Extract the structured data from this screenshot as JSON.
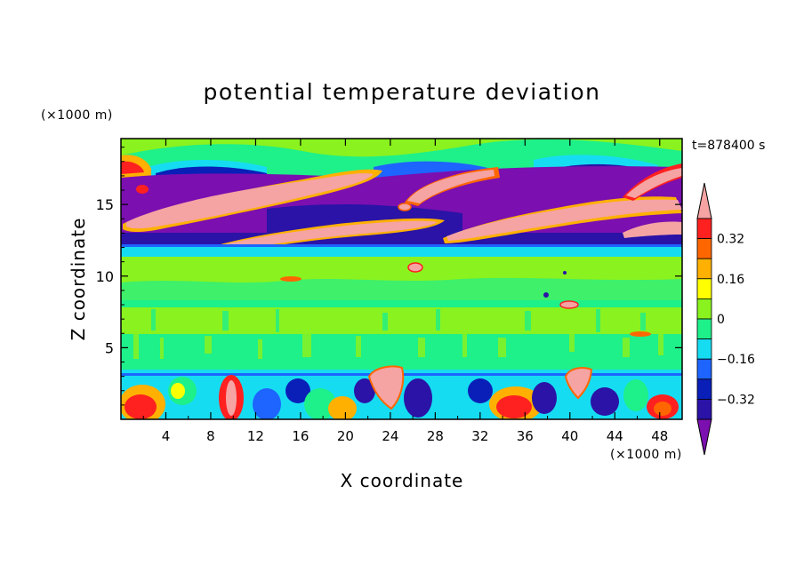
{
  "chart_data": {
    "type": "heatmap",
    "title": "potential temperature deviation",
    "time_label": "t=878400 s",
    "xlabel": "X coordinate",
    "ylabel": "Z coordinate",
    "x_unit": "(×1000 m)",
    "y_unit": "(×1000 m)",
    "xlim": [
      0,
      50
    ],
    "ylim": [
      0,
      19.6
    ],
    "x_ticks": [
      "4",
      "8",
      "12",
      "16",
      "20",
      "24",
      "28",
      "32",
      "36",
      "40",
      "44",
      "48"
    ],
    "y_ticks": [
      "5",
      "10",
      "15"
    ],
    "colorbar_labels": [
      "0.32",
      "0.16",
      "0",
      "−0.16",
      "−0.32"
    ],
    "colorbar_label_values": [
      0.32,
      0.16,
      0,
      -0.16,
      -0.32
    ],
    "contour_levels": [
      -0.4,
      -0.32,
      -0.24,
      -0.16,
      -0.08,
      0,
      0.08,
      0.16,
      0.24,
      0.32,
      0.4
    ],
    "level_colors": [
      "#7b0fb0",
      "#2a13a6",
      "#0a1fb8",
      "#1e64ff",
      "#16dcf2",
      "#1ef08a",
      "#8af21e",
      "#ffff00",
      "#ffb000",
      "#ff6600",
      "#ff2020",
      "#f5a3a3"
    ],
    "bands": [
      {
        "z": [
          17.5,
          19.6
        ],
        "level": "green"
      },
      {
        "z": [
          12.8,
          17.5
        ],
        "level": "purple",
        "note": "alternating pink streaks"
      },
      {
        "z": [
          11.7,
          12.8
        ],
        "level": "cyan"
      },
      {
        "z": [
          3.8,
          11.7
        ],
        "level": "green"
      },
      {
        "z": [
          3.2,
          3.8
        ],
        "level": "cyan-blue"
      },
      {
        "z": [
          0,
          3.2
        ],
        "level": "mixed"
      }
    ]
  }
}
